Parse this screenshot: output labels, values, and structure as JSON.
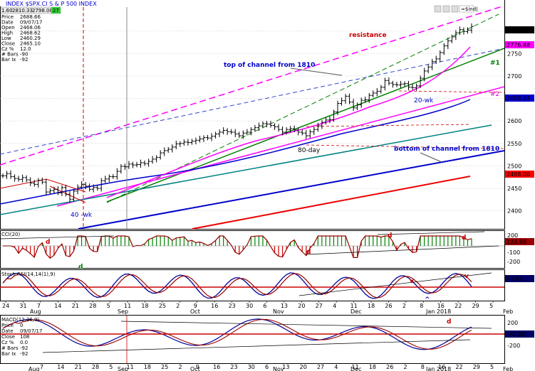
{
  "header": {
    "symbol_label": "INDEX $SPX.CI  S & P 500 INDEX",
    "interval": "1.60",
    "quotes": [
      "2810.33",
      "2798.08"
    ],
    "badge": "27",
    "info_rows": [
      [
        "Price",
        "2688.66"
      ],
      [
        "Date",
        "09/07/17"
      ],
      [
        "Open",
        "2468.06"
      ],
      [
        "High",
        "2468.62"
      ],
      [
        "Low",
        "2460.29"
      ],
      [
        "Close",
        "2465.10"
      ],
      [
        "Cz %",
        "12.0"
      ],
      [
        "# Bars",
        "-90"
      ],
      [
        "Bar Ix",
        "-92"
      ]
    ],
    "top_right_label": "≈$ind|"
  },
  "chart_data": {
    "type": "line",
    "title": "INDEX $SPX.CI S & P 500 INDEX",
    "ylim": [
      2360,
      2850
    ],
    "yticks": [
      2400,
      2450,
      2500,
      2550,
      2600,
      2650,
      2700,
      2750,
      2800
    ],
    "price_series": [
      2478,
      2483,
      2476,
      2472,
      2470,
      2474,
      2469,
      2462,
      2459,
      2468,
      2464,
      2442,
      2445,
      2448,
      2440,
      2452,
      2437,
      2426,
      2444,
      2453,
      2459,
      2455,
      2448,
      2452,
      2450,
      2467,
      2471,
      2476,
      2476,
      2488,
      2499,
      2498,
      2504,
      2502,
      2503,
      2507,
      2505,
      2510,
      2515,
      2519,
      2529,
      2534,
      2537,
      2542,
      2549,
      2550,
      2553,
      2552,
      2555,
      2557,
      2560,
      2563,
      2562,
      2566,
      2571,
      2575,
      2579,
      2576,
      2575,
      2571,
      2567,
      2573,
      2575,
      2581,
      2585,
      2589,
      2594,
      2593,
      2590,
      2587,
      2581,
      2575,
      2581,
      2583,
      2580,
      2575,
      2573,
      2567,
      2576,
      2581,
      2589,
      2597,
      2602,
      2603,
      2620,
      2639,
      2645,
      2655,
      2642,
      2629,
      2636,
      2646,
      2647,
      2657,
      2662,
      2666,
      2675,
      2690,
      2684,
      2681,
      2680,
      2682,
      2683,
      2675,
      2674,
      2678,
      2695,
      2711,
      2720,
      2732,
      2738,
      2752,
      2767,
      2778,
      2787,
      2796,
      2803,
      2799,
      2802,
      2810
    ],
    "moving_averages": [
      {
        "label": "20-wk",
        "color": "#008000"
      },
      {
        "label": "40 -wk",
        "color": "#0000cc"
      },
      {
        "label": "80-day",
        "color": "#000000"
      }
    ],
    "price_boxes": [
      {
        "value": "2810.30",
        "color": "#000000"
      },
      {
        "value": "2776.48",
        "color": "#ff00ff"
      },
      {
        "value": "2658.04",
        "color": "#0000cc"
      },
      {
        "value": "2488.00",
        "color": "#ff0000"
      }
    ],
    "annotations": [
      {
        "text": "resistance",
        "color": "#cc0000"
      },
      {
        "text": "top of channel from 1810",
        "color": "#0000cc"
      },
      {
        "text": "bottom of channel from 1810",
        "color": "#0000cc"
      },
      {
        "text": "#1",
        "color": "#008000"
      },
      {
        "text": "#2",
        "color": "#cc00cc"
      },
      {
        "text": "20-wk",
        "color": "#0000cc"
      },
      {
        "text": "80-day",
        "color": "#000000"
      },
      {
        "text": "40 -wk",
        "color": "#0000cc"
      }
    ],
    "panels": [
      {
        "name": "CCI(20)",
        "yticks": [
          "200",
          "100",
          "-100",
          "-200"
        ],
        "value_box": "124.98",
        "marks": [
          "d",
          "d",
          "d",
          "d",
          "d"
        ]
      },
      {
        "name": "Stoch RSI(14,14(1),9)",
        "yticks": [],
        "value_box": "87.44",
        "marks": [
          "v",
          "v",
          "^"
        ]
      },
      {
        "name": "MACD(12,26,9)",
        "yticks": [
          "200",
          "-200"
        ],
        "value_box": "-36.38",
        "marks": [
          "d"
        ],
        "info_rows": [
          [
            "Price",
            "0"
          ],
          [
            "Date",
            "09/07/17"
          ],
          [
            "Close",
            "108"
          ],
          [
            "Cz %",
            "0.0"
          ],
          [
            "# Bars",
            "-92"
          ],
          [
            "Bar Ix",
            "-92"
          ]
        ]
      }
    ],
    "x_axis": {
      "day_ticks": [
        "24",
        "31",
        "7",
        "14",
        "21",
        "28",
        "5",
        "11",
        "18",
        "25",
        "2",
        "9",
        "16",
        "23",
        "30",
        "6",
        "13",
        "20",
        "27",
        "4",
        "11",
        "18",
        "26",
        "2",
        "8",
        "16",
        "22",
        "29",
        "5"
      ],
      "month_labels": [
        "Aug",
        "Sep",
        "Oct",
        "Nov",
        "Dec",
        "Jan 2018",
        "Feb"
      ],
      "lower_day_ticks": [
        "7",
        "14",
        "21",
        "28",
        "5",
        "11",
        "18",
        "25",
        "2",
        "9",
        "16",
        "23",
        "30",
        "6",
        "13",
        "20",
        "27",
        "4",
        "11",
        "18",
        "26",
        "2",
        "8",
        "16",
        "22",
        "29",
        "5"
      ]
    },
    "grid": true,
    "legend": "none"
  }
}
